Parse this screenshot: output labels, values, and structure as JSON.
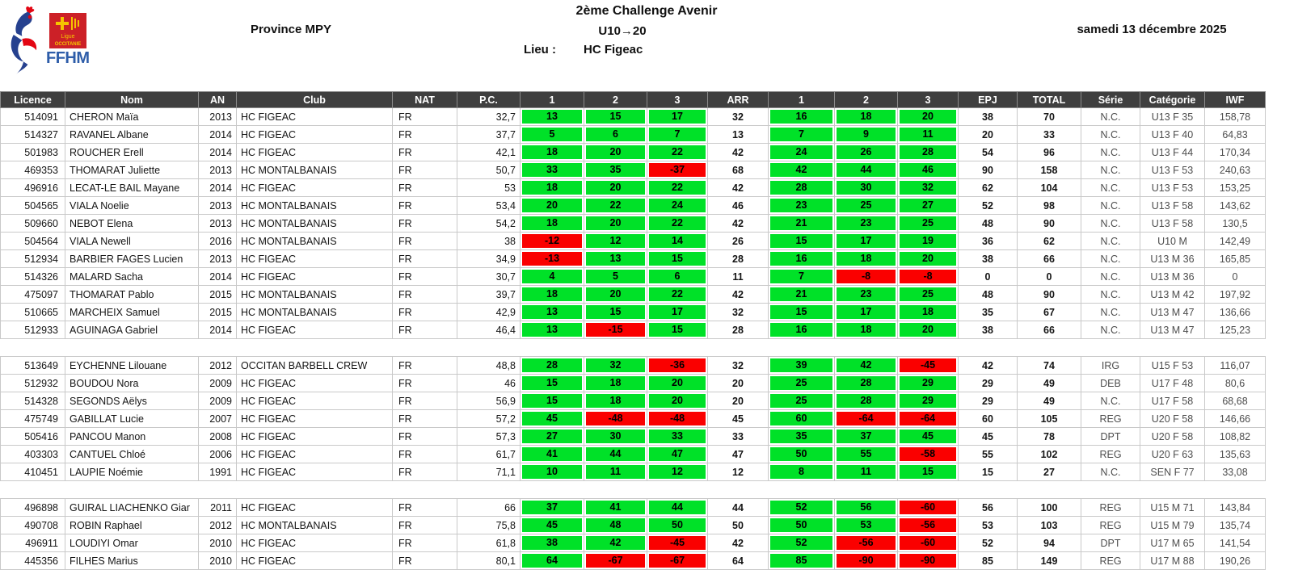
{
  "header": {
    "competition_title": "2ème Challenge Avenir",
    "category_range": "U10→20",
    "lieu_label": "Lieu :",
    "lieu_value": "HC Figeac",
    "province": "Province MPY",
    "date": "samedi 13 décembre 2025",
    "logo": {
      "federation": "FFHM",
      "ligue_line1": "Ligue",
      "ligue_line2": "OCCITANIE"
    }
  },
  "colors": {
    "good_lift": "#00e128",
    "failed_lift": "#fa0000",
    "header_bg": "#3f3f3f"
  },
  "table": {
    "columns": [
      "Licence",
      "Nom",
      "AN",
      "Club",
      "NAT",
      "P.C.",
      "1",
      "2",
      "3",
      "ARR",
      "1",
      "2",
      "3",
      "EPJ",
      "TOTAL",
      "Série",
      "Catégorie",
      "IWF"
    ],
    "groups": [
      {
        "rows": [
          {
            "licence": "514091",
            "nom": "CHERON Maïa",
            "an": "2013",
            "club": "HC FIGEAC",
            "nat": "FR",
            "pc": "32,7",
            "snatch": [
              13,
              15,
              17
            ],
            "snatch_best": "32",
            "cleanjerk": [
              16,
              18,
              20
            ],
            "cleanjerk_best": "38",
            "total": "70",
            "serie": "N.C.",
            "categorie": "U13 F 35",
            "iwf": "158,78"
          },
          {
            "licence": "514327",
            "nom": "RAVANEL Albane",
            "an": "2014",
            "club": "HC FIGEAC",
            "nat": "FR",
            "pc": "37,7",
            "snatch": [
              5,
              6,
              7
            ],
            "snatch_best": "13",
            "cleanjerk": [
              7,
              9,
              11
            ],
            "cleanjerk_best": "20",
            "total": "33",
            "serie": "N.C.",
            "categorie": "U13 F 40",
            "iwf": "64,83"
          },
          {
            "licence": "501983",
            "nom": "ROUCHER Erell",
            "an": "2014",
            "club": "HC FIGEAC",
            "nat": "FR",
            "pc": "42,1",
            "snatch": [
              18,
              20,
              22
            ],
            "snatch_best": "42",
            "cleanjerk": [
              24,
              26,
              28
            ],
            "cleanjerk_best": "54",
            "total": "96",
            "serie": "N.C.",
            "categorie": "U13 F 44",
            "iwf": "170,34"
          },
          {
            "licence": "469353",
            "nom": "THOMARAT Juliette",
            "an": "2013",
            "club": "HC MONTALBANAIS",
            "nat": "FR",
            "pc": "50,7",
            "snatch": [
              33,
              35,
              -37
            ],
            "snatch_best": "68",
            "cleanjerk": [
              42,
              44,
              46
            ],
            "cleanjerk_best": "90",
            "total": "158",
            "serie": "N.C.",
            "categorie": "U13 F 53",
            "iwf": "240,63"
          },
          {
            "licence": "496916",
            "nom": "LECAT-LE BAIL Mayane",
            "an": "2014",
            "club": "HC FIGEAC",
            "nat": "FR",
            "pc": "53",
            "snatch": [
              18,
              20,
              22
            ],
            "snatch_best": "42",
            "cleanjerk": [
              28,
              30,
              32
            ],
            "cleanjerk_best": "62",
            "total": "104",
            "serie": "N.C.",
            "categorie": "U13 F 53",
            "iwf": "153,25"
          },
          {
            "licence": "504565",
            "nom": "VIALA Noelie",
            "an": "2013",
            "club": "HC MONTALBANAIS",
            "nat": "FR",
            "pc": "53,4",
            "snatch": [
              20,
              22,
              24
            ],
            "snatch_best": "46",
            "cleanjerk": [
              23,
              25,
              27
            ],
            "cleanjerk_best": "52",
            "total": "98",
            "serie": "N.C.",
            "categorie": "U13 F 58",
            "iwf": "143,62"
          },
          {
            "licence": "509660",
            "nom": "NEBOT Elena",
            "an": "2013",
            "club": "HC MONTALBANAIS",
            "nat": "FR",
            "pc": "54,2",
            "snatch": [
              18,
              20,
              22
            ],
            "snatch_best": "42",
            "cleanjerk": [
              21,
              23,
              25
            ],
            "cleanjerk_best": "48",
            "total": "90",
            "serie": "N.C.",
            "categorie": "U13 F 58",
            "iwf": "130,5"
          },
          {
            "licence": "504564",
            "nom": "VIALA Newell",
            "an": "2016",
            "club": "HC MONTALBANAIS",
            "nat": "FR",
            "pc": "38",
            "snatch": [
              -12,
              12,
              14
            ],
            "snatch_best": "26",
            "cleanjerk": [
              15,
              17,
              19
            ],
            "cleanjerk_best": "36",
            "total": "62",
            "serie": "N.C.",
            "categorie": "U10 M",
            "iwf": "142,49"
          },
          {
            "licence": "512934",
            "nom": "BARBIER FAGES Lucien",
            "an": "2013",
            "club": "HC FIGEAC",
            "nat": "FR",
            "pc": "34,9",
            "snatch": [
              -13,
              13,
              15
            ],
            "snatch_best": "28",
            "cleanjerk": [
              16,
              18,
              20
            ],
            "cleanjerk_best": "38",
            "total": "66",
            "serie": "N.C.",
            "categorie": "U13 M 36",
            "iwf": "165,85"
          },
          {
            "licence": "514326",
            "nom": "MALARD Sacha",
            "an": "2014",
            "club": "HC FIGEAC",
            "nat": "FR",
            "pc": "30,7",
            "snatch": [
              4,
              5,
              6
            ],
            "snatch_best": "11",
            "cleanjerk": [
              7,
              -8,
              -8
            ],
            "cleanjerk_best": "0",
            "total": "0",
            "serie": "N.C.",
            "categorie": "U13 M 36",
            "iwf": "0"
          },
          {
            "licence": "475097",
            "nom": "THOMARAT Pablo",
            "an": "2015",
            "club": "HC MONTALBANAIS",
            "nat": "FR",
            "pc": "39,7",
            "snatch": [
              18,
              20,
              22
            ],
            "snatch_best": "42",
            "cleanjerk": [
              21,
              23,
              25
            ],
            "cleanjerk_best": "48",
            "total": "90",
            "serie": "N.C.",
            "categorie": "U13 M 42",
            "iwf": "197,92"
          },
          {
            "licence": "510665",
            "nom": "MARCHEIX Samuel",
            "an": "2015",
            "club": "HC MONTALBANAIS",
            "nat": "FR",
            "pc": "42,9",
            "snatch": [
              13,
              15,
              17
            ],
            "snatch_best": "32",
            "cleanjerk": [
              15,
              17,
              18
            ],
            "cleanjerk_best": "35",
            "total": "67",
            "serie": "N.C.",
            "categorie": "U13 M 47",
            "iwf": "136,66"
          },
          {
            "licence": "512933",
            "nom": "AGUINAGA Gabriel",
            "an": "2014",
            "club": "HC FIGEAC",
            "nat": "FR",
            "pc": "46,4",
            "snatch": [
              13,
              -15,
              15
            ],
            "snatch_best": "28",
            "cleanjerk": [
              16,
              18,
              20
            ],
            "cleanjerk_best": "38",
            "total": "66",
            "serie": "N.C.",
            "categorie": "U13 M 47",
            "iwf": "125,23"
          }
        ]
      },
      {
        "rows": [
          {
            "licence": "513649",
            "nom": "EYCHENNE Lilouane",
            "an": "2012",
            "club": "OCCITAN BARBELL CREW",
            "nat": "FR",
            "pc": "48,8",
            "snatch": [
              28,
              32,
              -36
            ],
            "snatch_best": "32",
            "cleanjerk": [
              39,
              42,
              -45
            ],
            "cleanjerk_best": "42",
            "total": "74",
            "serie": "IRG",
            "categorie": "U15 F 53",
            "iwf": "116,07"
          },
          {
            "licence": "512932",
            "nom": "BOUDOU Nora",
            "an": "2009",
            "club": "HC FIGEAC",
            "nat": "FR",
            "pc": "46",
            "snatch": [
              15,
              18,
              20
            ],
            "snatch_best": "20",
            "cleanjerk": [
              25,
              28,
              29
            ],
            "cleanjerk_best": "29",
            "total": "49",
            "serie": "DEB",
            "categorie": "U17 F 48",
            "iwf": "80,6"
          },
          {
            "licence": "514328",
            "nom": "SEGONDS Aëlys",
            "an": "2009",
            "club": "HC FIGEAC",
            "nat": "FR",
            "pc": "56,9",
            "snatch": [
              15,
              18,
              20
            ],
            "snatch_best": "20",
            "cleanjerk": [
              25,
              28,
              29
            ],
            "cleanjerk_best": "29",
            "total": "49",
            "serie": "N.C.",
            "categorie": "U17 F 58",
            "iwf": "68,68"
          },
          {
            "licence": "475749",
            "nom": "GABILLAT Lucie",
            "an": "2007",
            "club": "HC FIGEAC",
            "nat": "FR",
            "pc": "57,2",
            "snatch": [
              45,
              -48,
              -48
            ],
            "snatch_best": "45",
            "cleanjerk": [
              60,
              -64,
              -64
            ],
            "cleanjerk_best": "60",
            "total": "105",
            "serie": "REG",
            "categorie": "U20 F 58",
            "iwf": "146,66"
          },
          {
            "licence": "505416",
            "nom": "PANCOU Manon",
            "an": "2008",
            "club": "HC FIGEAC",
            "nat": "FR",
            "pc": "57,3",
            "snatch": [
              27,
              30,
              33
            ],
            "snatch_best": "33",
            "cleanjerk": [
              35,
              37,
              45
            ],
            "cleanjerk_best": "45",
            "total": "78",
            "serie": "DPT",
            "categorie": "U20 F 58",
            "iwf": "108,82"
          },
          {
            "licence": "403303",
            "nom": "CANTUEL Chloé",
            "an": "2006",
            "club": "HC FIGEAC",
            "nat": "FR",
            "pc": "61,7",
            "snatch": [
              41,
              44,
              47
            ],
            "snatch_best": "47",
            "cleanjerk": [
              50,
              55,
              -58
            ],
            "cleanjerk_best": "55",
            "total": "102",
            "serie": "REG",
            "categorie": "U20 F 63",
            "iwf": "135,63"
          },
          {
            "licence": "410451",
            "nom": "LAUPIE Noémie",
            "an": "1991",
            "club": "HC FIGEAC",
            "nat": "FR",
            "pc": "71,1",
            "snatch": [
              10,
              11,
              12
            ],
            "snatch_best": "12",
            "cleanjerk": [
              8,
              11,
              15
            ],
            "cleanjerk_best": "15",
            "total": "27",
            "serie": "N.C.",
            "categorie": "SEN F 77",
            "iwf": "33,08"
          }
        ]
      },
      {
        "rows": [
          {
            "licence": "496898",
            "nom": "GUIRAL LIACHENKO Giar",
            "an": "2011",
            "club": "HC FIGEAC",
            "nat": "FR",
            "pc": "66",
            "snatch": [
              37,
              41,
              44
            ],
            "snatch_best": "44",
            "cleanjerk": [
              52,
              56,
              -60
            ],
            "cleanjerk_best": "56",
            "total": "100",
            "serie": "REG",
            "categorie": "U15 M 71",
            "iwf": "143,84"
          },
          {
            "licence": "490708",
            "nom": "ROBIN Raphael",
            "an": "2012",
            "club": "HC MONTALBANAIS",
            "nat": "FR",
            "pc": "75,8",
            "snatch": [
              45,
              48,
              50
            ],
            "snatch_best": "50",
            "cleanjerk": [
              50,
              53,
              -56
            ],
            "cleanjerk_best": "53",
            "total": "103",
            "serie": "REG",
            "categorie": "U15 M 79",
            "iwf": "135,74"
          },
          {
            "licence": "496911",
            "nom": "LOUDIYI Omar",
            "an": "2010",
            "club": "HC FIGEAC",
            "nat": "FR",
            "pc": "61,8",
            "snatch": [
              38,
              42,
              -45
            ],
            "snatch_best": "42",
            "cleanjerk": [
              52,
              -56,
              -60
            ],
            "cleanjerk_best": "52",
            "total": "94",
            "serie": "DPT",
            "categorie": "U17 M 65",
            "iwf": "141,54"
          },
          {
            "licence": "445356",
            "nom": "FILHES Marius",
            "an": "2010",
            "club": "HC FIGEAC",
            "nat": "FR",
            "pc": "80,1",
            "snatch": [
              64,
              -67,
              -67
            ],
            "snatch_best": "64",
            "cleanjerk": [
              85,
              -90,
              -90
            ],
            "cleanjerk_best": "85",
            "total": "149",
            "serie": "REG",
            "categorie": "U17 M 88",
            "iwf": "190,26"
          }
        ]
      }
    ]
  }
}
